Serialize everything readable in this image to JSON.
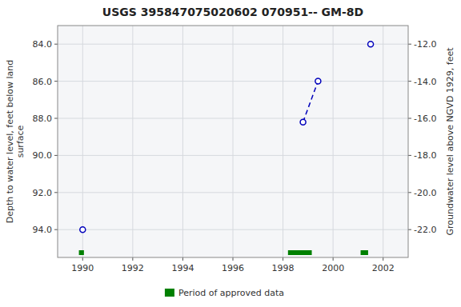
{
  "chart_data": {
    "type": "line",
    "title": "USGS 395847075020602 070951-- GM-8D",
    "ylabel": "Depth to water level, feet below land\nsurface",
    "y2label": "Groundwater level above NGVD 1929, feet",
    "xlim": [
      1989.0,
      2003.0
    ],
    "xticks": [
      1990,
      1992,
      1994,
      1996,
      1998,
      2000,
      2002
    ],
    "ylim": [
      95.5,
      83.0
    ],
    "yticks": [
      {
        "value": 84.0,
        "label": "84.0"
      },
      {
        "value": 86.0,
        "label": "86.0"
      },
      {
        "value": 88.0,
        "label": "88.0"
      },
      {
        "value": 90.0,
        "label": "90.0"
      },
      {
        "value": 92.0,
        "label": "92.0"
      },
      {
        "value": 94.0,
        "label": "94.0"
      }
    ],
    "y2lim": [
      -23.5,
      -11.0
    ],
    "y2ticks": [
      {
        "value": -12.0,
        "label": "-12.0"
      },
      {
        "value": -14.0,
        "label": "-14.0"
      },
      {
        "value": -16.0,
        "label": "-16.0"
      },
      {
        "value": -18.0,
        "label": "-18.0"
      },
      {
        "value": -20.0,
        "label": "-20.0"
      },
      {
        "value": -22.0,
        "label": "-22.0"
      }
    ],
    "grid": true,
    "legend": "bottom",
    "series": [
      {
        "type": "scatter",
        "color": "#0000bb",
        "marker": "circle",
        "x": [
          1990.0,
          2001.5
        ],
        "values": [
          94.0,
          84.0
        ]
      },
      {
        "type": "line",
        "color": "#0000bb",
        "marker": "circle",
        "line_style": "dashed",
        "x": [
          1998.8,
          1999.4
        ],
        "values": [
          88.2,
          86.0
        ]
      },
      {
        "type": "span",
        "name": "Period of approved data",
        "color": "#008000",
        "x": [
          1989.85,
          1998.2,
          2001.1
        ],
        "x_end": [
          1990.05,
          1999.15,
          2001.4
        ]
      }
    ]
  }
}
